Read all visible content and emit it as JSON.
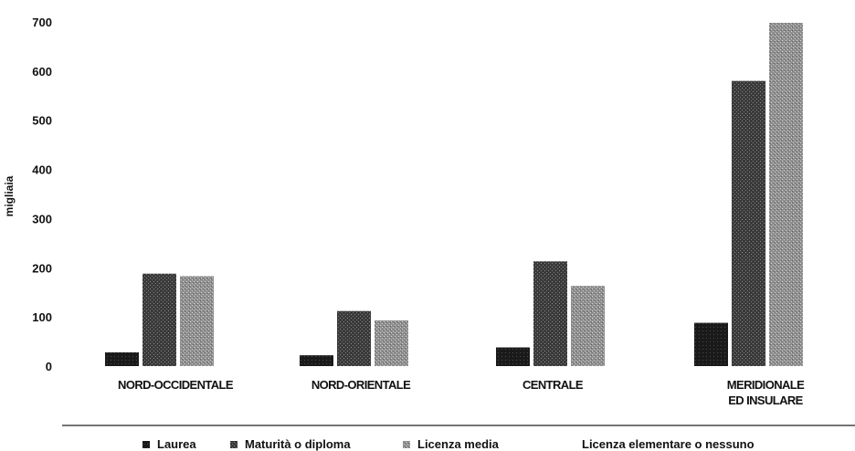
{
  "chart_data": {
    "type": "bar",
    "title": "",
    "xlabel": "",
    "ylabel": "migliaia",
    "ylim": [
      0,
      700
    ],
    "yticks": [
      0,
      100,
      200,
      300,
      400,
      500,
      600,
      700
    ],
    "grid": false,
    "legend_position": "bottom",
    "categories": [
      [
        "NORD-OCCIDENTALE"
      ],
      [
        "NORD-ORIENTALE"
      ],
      [
        "CENTRALE"
      ],
      [
        "MERIDIONALE",
        "ED INSULARE"
      ]
    ],
    "series": [
      {
        "name": "Laurea",
        "values": [
          28,
          22,
          38,
          88
        ],
        "color": "#1f1f1f"
      },
      {
        "name": "Maturità o diploma",
        "values": [
          188,
          112,
          213,
          580
        ],
        "color": "#454545"
      },
      {
        "name": "Licenza media",
        "values": [
          183,
          93,
          163,
          698
        ],
        "color": "#9c9c9c"
      },
      {
        "name": "Licenza elementare o nessuno",
        "values": [
          0,
          0,
          0,
          0
        ],
        "color": "#d6d6d6"
      }
    ]
  }
}
